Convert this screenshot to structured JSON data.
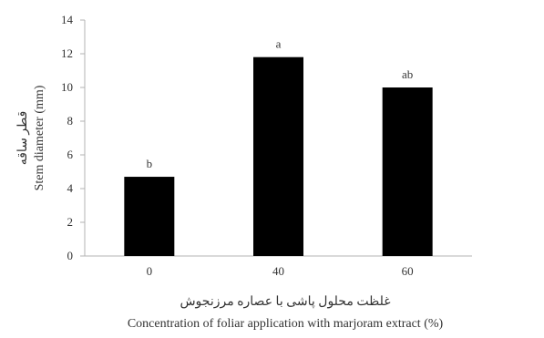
{
  "chart_data": {
    "type": "bar",
    "categories": [
      "0",
      "40",
      "60"
    ],
    "values": [
      4.7,
      11.8,
      10.0
    ],
    "significance_letters": [
      "b",
      "a",
      "ab"
    ],
    "ylim": [
      0,
      14
    ],
    "yticks": [
      "0",
      "2",
      "4",
      "6",
      "8",
      "10",
      "12",
      "14"
    ],
    "xlabel_fa": "غلظت محلول پاشی با عصاره مرزنجوش",
    "xlabel_en": "Concentration of foliar application with marjoram extract (%)",
    "ylabel_fa": "قطر ساقه",
    "ylabel_en": "Stem diameter (mm)",
    "bar_color": "#000000",
    "grid": false,
    "legend": "none"
  }
}
